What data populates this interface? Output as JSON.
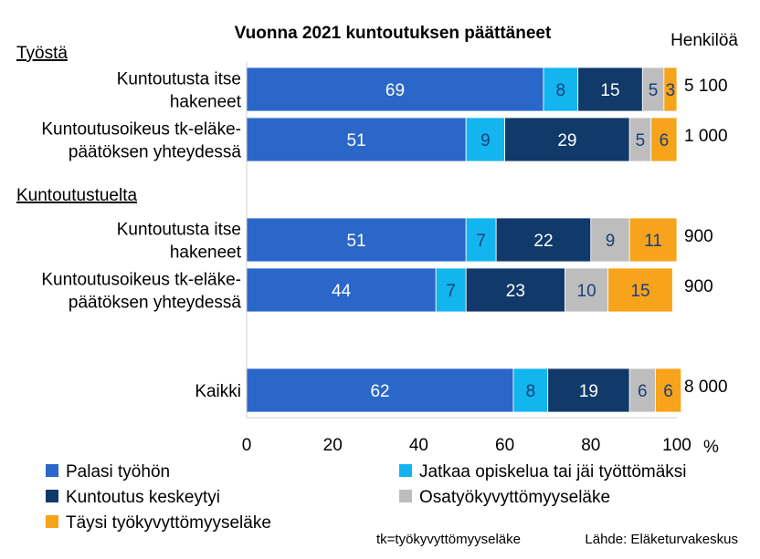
{
  "chart_data": {
    "type": "bar",
    "stacked": true,
    "orientation": "horizontal",
    "title": "Vuonna 2021 kuntoutuksen päättäneet",
    "count_header": "Henkilöä",
    "groups": [
      {
        "label": "Työstä",
        "rows": [
          0,
          1
        ]
      },
      {
        "label": "Kuntoutustuelta",
        "rows": [
          2,
          3
        ]
      }
    ],
    "categories": [
      [
        "Kuntoutusta itse",
        "hakeneet"
      ],
      [
        "Kuntoutusoikeus tk-eläke-",
        "päätöksen yhteydessä"
      ],
      [
        "Kuntoutusta itse",
        "hakeneet"
      ],
      [
        "Kuntoutusoikeus tk-eläke-",
        "päätöksen yhteydessä"
      ],
      [
        "Kaikki"
      ]
    ],
    "counts": [
      "5 100",
      "1 000",
      "900",
      "900",
      "8 000"
    ],
    "series": [
      {
        "name": "Palasi työhön",
        "color": "#2a67c9",
        "label_color": "#ffffff",
        "values": [
          69,
          51,
          51,
          44,
          62
        ]
      },
      {
        "name": "Jatkaa opiskelua tai jäi työttömäksi",
        "color": "#12b5ee",
        "label_color": "#1a3f7a",
        "values": [
          8,
          9,
          7,
          7,
          8
        ]
      },
      {
        "name": "Kuntoutus keskeytyi",
        "color": "#113a6b",
        "label_color": "#ffffff",
        "values": [
          15,
          29,
          22,
          23,
          19
        ]
      },
      {
        "name": "Osatyökyvyttömyyseläke",
        "color": "#bdbdbd",
        "label_color": "#1a3f7a",
        "values": [
          5,
          5,
          9,
          10,
          6
        ]
      },
      {
        "name": "Täysi työkyvyttömyyseläke",
        "color": "#f7a31b",
        "label_color": "#1a3f7a",
        "values": [
          3,
          6,
          11,
          15,
          6
        ]
      }
    ],
    "xaxis": {
      "ticks": [
        0,
        20,
        40,
        60,
        80,
        100
      ],
      "unit": "%"
    },
    "xlim": [
      0,
      100
    ],
    "legend_columns": [
      [
        0,
        2,
        4
      ],
      [
        1,
        3
      ]
    ],
    "notes": {
      "abbreviation": "tk=työkyvyttömyyseläke",
      "source": "Lähde: Eläketurvakeskus"
    }
  }
}
